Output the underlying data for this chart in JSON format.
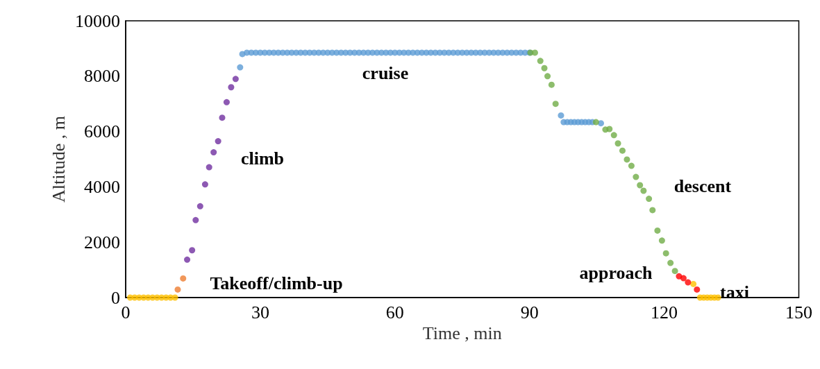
{
  "chart_data": {
    "type": "scatter",
    "xlabel": "Time , min",
    "ylabel": "Altitude , m",
    "xlim": [
      0,
      150
    ],
    "xticks": [
      0,
      30,
      60,
      90,
      120,
      150
    ],
    "ylim": [
      0,
      10000
    ],
    "yticks": [
      0,
      2000,
      4000,
      6000,
      8000,
      10000
    ],
    "grid": false,
    "marker": "circle",
    "series": [
      {
        "color": "#ffc000",
        "x": [
          1,
          2,
          3,
          4,
          5,
          6,
          7,
          8,
          9,
          10,
          11,
          126.5,
          128,
          128.8,
          129.6,
          130.4,
          131.2,
          132
        ],
        "values": [
          0,
          0,
          0,
          0,
          0,
          0,
          0,
          0,
          0,
          0,
          0,
          490,
          0,
          0,
          0,
          0,
          0,
          0
        ]
      },
      {
        "color": "#ed7d31",
        "x": [
          11.6,
          12.8
        ],
        "values": [
          290,
          690
        ]
      },
      {
        "color": "#7030a0",
        "x": [
          13.7,
          14.8,
          15.6,
          16.6,
          17.7,
          18.6,
          19.6,
          20.6,
          21.5,
          22.5,
          23.5,
          24.5
        ],
        "values": [
          1370,
          1710,
          2800,
          3300,
          4090,
          4710,
          5250,
          5650,
          6500,
          7060,
          7600,
          7900
        ]
      },
      {
        "color": "#5b9bd5",
        "x": [
          25.5,
          26,
          27,
          28,
          29,
          30,
          31,
          32,
          33,
          34,
          35,
          36,
          37,
          38,
          39,
          40,
          41,
          42,
          43,
          44,
          45,
          46,
          47,
          48,
          49,
          50,
          51,
          52,
          53,
          54,
          55,
          56,
          57,
          58,
          59,
          60,
          61,
          62,
          63,
          64,
          65,
          66,
          67,
          68,
          69,
          70,
          71,
          72,
          73,
          74,
          75,
          76,
          77,
          78,
          79,
          80,
          81,
          82,
          83,
          84,
          85,
          86,
          87,
          88,
          89,
          90,
          97,
          97.6,
          98.4,
          99.2,
          100,
          100.8,
          101.6,
          102.4,
          103.2,
          104,
          105.9
        ],
        "values": [
          8320,
          8800,
          8850,
          8850,
          8850,
          8850,
          8850,
          8850,
          8850,
          8850,
          8850,
          8850,
          8850,
          8850,
          8850,
          8850,
          8850,
          8850,
          8850,
          8850,
          8850,
          8850,
          8850,
          8850,
          8850,
          8850,
          8850,
          8850,
          8850,
          8850,
          8850,
          8850,
          8850,
          8850,
          8850,
          8850,
          8850,
          8850,
          8850,
          8850,
          8850,
          8850,
          8850,
          8850,
          8850,
          8850,
          8850,
          8850,
          8850,
          8850,
          8850,
          8850,
          8850,
          8850,
          8850,
          8850,
          8850,
          8850,
          8850,
          8850,
          8850,
          8850,
          8850,
          8850,
          8850,
          8850,
          6580,
          6340,
          6340,
          6340,
          6340,
          6340,
          6340,
          6340,
          6340,
          6340,
          6300
        ]
      },
      {
        "color": "#70ad47",
        "x": [
          90.2,
          91.2,
          92.4,
          93.3,
          94,
          94.9,
          95.8,
          104.8,
          106.9,
          107.8,
          108.8,
          109.7,
          110.7,
          111.7,
          112.7,
          113.7,
          114.6,
          115.4,
          116.6,
          117.4,
          118.5,
          119.5,
          120.4,
          121.4,
          122.4
        ],
        "values": [
          8850,
          8850,
          8550,
          8290,
          8000,
          7690,
          7000,
          6340,
          6070,
          6090,
          5870,
          5570,
          5310,
          4990,
          4760,
          4360,
          4060,
          3860,
          3570,
          3160,
          2420,
          2060,
          1600,
          1250,
          960
        ]
      },
      {
        "color": "#ff0000",
        "x": [
          123.3,
          124.3,
          125.3,
          127.3
        ],
        "values": [
          770,
          700,
          550,
          290
        ]
      }
    ],
    "annotations": [
      "cruise",
      "climb",
      "descent",
      "approach",
      "Takeoff/climb-up",
      "taxi"
    ]
  }
}
